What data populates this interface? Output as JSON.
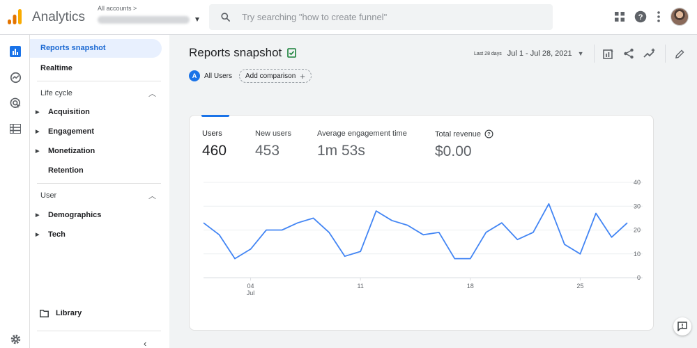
{
  "app": {
    "title": "Analytics"
  },
  "account": {
    "caption": "All accounts",
    "breadcrumb_arrow": ">"
  },
  "search": {
    "placeholder": "Try searching \"how to create funnel\""
  },
  "nav": {
    "active": "Reports snapshot",
    "realtime": "Realtime",
    "lifecycle": {
      "title": "Life cycle",
      "items": [
        "Acquisition",
        "Engagement",
        "Monetization"
      ],
      "retention": "Retention"
    },
    "user": {
      "title": "User",
      "items": [
        "Demographics",
        "Tech"
      ]
    },
    "library": "Library"
  },
  "page": {
    "title": "Reports snapshot",
    "date_caption": "Last 28 days",
    "date_range": "Jul 1 - Jul 28, 2021"
  },
  "comparison": {
    "badge_letter": "A",
    "segment": "All Users",
    "add_label": "Add comparison"
  },
  "metrics": [
    {
      "label": "Users",
      "value": "460"
    },
    {
      "label": "New users",
      "value": "453"
    },
    {
      "label": "Average engagement time",
      "value": "1m 53s"
    },
    {
      "label": "Total revenue",
      "value": "$0.00"
    }
  ],
  "chart_data": {
    "type": "line",
    "x": [
      1,
      2,
      3,
      4,
      5,
      6,
      7,
      8,
      9,
      10,
      11,
      12,
      13,
      14,
      15,
      16,
      17,
      18,
      19,
      20,
      21,
      22,
      23,
      24,
      25,
      26,
      27,
      28
    ],
    "series": [
      {
        "values": [
          23,
          18,
          8,
          12,
          20,
          20,
          23,
          25,
          19,
          9,
          11,
          28,
          24,
          22,
          18,
          19,
          8,
          8,
          19,
          23,
          16,
          19,
          31,
          14,
          10,
          27,
          17,
          23
        ]
      }
    ],
    "x_tick_labels": [
      "04",
      "11",
      "18",
      "25"
    ],
    "x_tick_positions": [
      4,
      11,
      18,
      25
    ],
    "x_sublabel": "Jul",
    "y_ticks": [
      0,
      10,
      20,
      30,
      40
    ],
    "ylim": [
      0,
      40
    ],
    "grid": true,
    "color": "#4285f4"
  }
}
